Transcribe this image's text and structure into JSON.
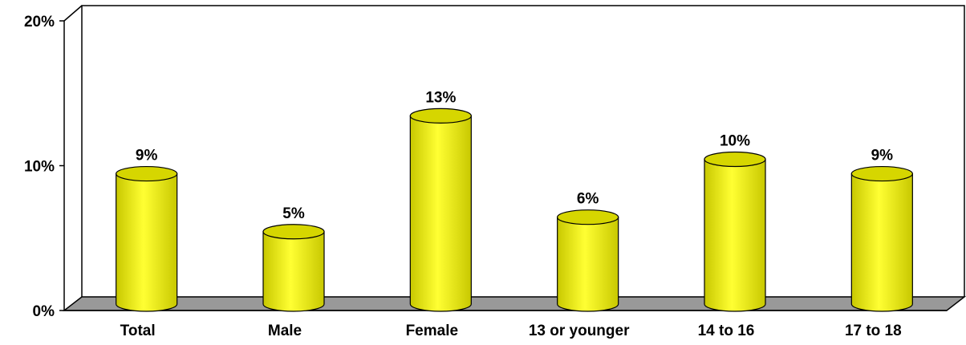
{
  "chart_data": {
    "type": "bar",
    "style": "3d-cylinder",
    "categories": [
      "Total",
      "Male",
      "Female",
      "13 or younger",
      "14 to 16",
      "17 to 18"
    ],
    "values": [
      9,
      5,
      13,
      6,
      10,
      9
    ],
    "value_labels": [
      "9%",
      "5%",
      "13%",
      "6%",
      "10%",
      "9%"
    ],
    "yticks": [
      {
        "value": 0,
        "label": "0%"
      },
      {
        "value": 10,
        "label": "10%"
      },
      {
        "value": 20,
        "label": "20%"
      }
    ],
    "ylim": [
      0,
      20
    ],
    "grid": false,
    "legend": "none",
    "colors": {
      "bar_fill": "#ffff33",
      "bar_shade": "#c8c800",
      "bar_top": "#d6d600",
      "floor": "#999999",
      "axis": "#000000"
    }
  }
}
